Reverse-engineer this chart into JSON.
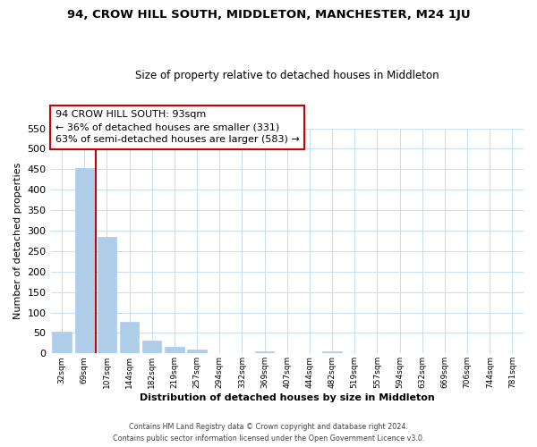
{
  "title": "94, CROW HILL SOUTH, MIDDLETON, MANCHESTER, M24 1JU",
  "subtitle": "Size of property relative to detached houses in Middleton",
  "xlabel": "Distribution of detached houses by size in Middleton",
  "ylabel": "Number of detached properties",
  "bar_labels": [
    "32sqm",
    "69sqm",
    "107sqm",
    "144sqm",
    "182sqm",
    "219sqm",
    "257sqm",
    "294sqm",
    "332sqm",
    "369sqm",
    "407sqm",
    "444sqm",
    "482sqm",
    "519sqm",
    "557sqm",
    "594sqm",
    "632sqm",
    "669sqm",
    "706sqm",
    "744sqm",
    "781sqm"
  ],
  "bar_values": [
    53,
    452,
    285,
    78,
    32,
    17,
    9,
    0,
    0,
    6,
    0,
    0,
    4,
    0,
    0,
    0,
    0,
    0,
    0,
    0,
    0
  ],
  "bar_color": "#aecde8",
  "bar_edge_color": "#aecde8",
  "grid_color": "#c8dff0",
  "vline_color": "#cc0000",
  "annotation_text": "94 CROW HILL SOUTH: 93sqm\n← 36% of detached houses are smaller (331)\n63% of semi-detached houses are larger (583) →",
  "annotation_box_color": "#ffffff",
  "annotation_box_edge": "#cc0000",
  "ylim": [
    0,
    550
  ],
  "yticks": [
    0,
    50,
    100,
    150,
    200,
    250,
    300,
    350,
    400,
    450,
    500,
    550
  ],
  "footer_line1": "Contains HM Land Registry data © Crown copyright and database right 2024.",
  "footer_line2": "Contains public sector information licensed under the Open Government Licence v3.0."
}
